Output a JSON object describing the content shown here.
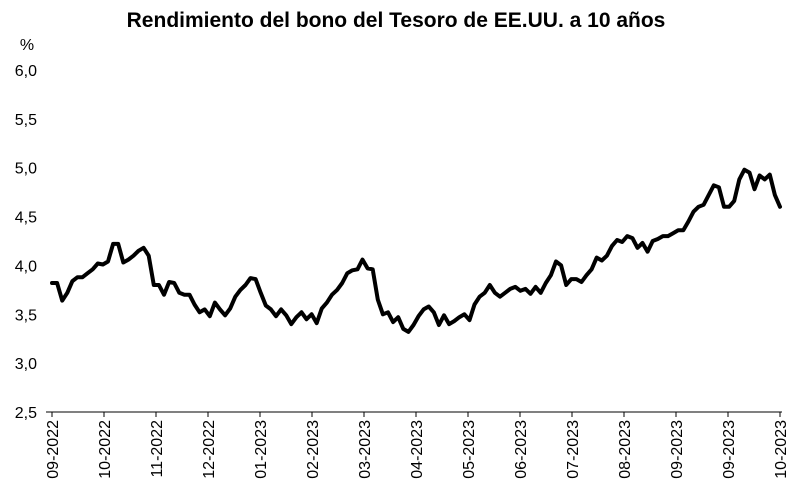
{
  "chart_data": {
    "type": "line",
    "title": "Rendimiento del bono del Tesoro de EE.UU. a 10 años",
    "ylabel": "%",
    "xlabel": "",
    "ylim": [
      2.5,
      6.0
    ],
    "yticks": [
      "6,0",
      "5,5",
      "5,0",
      "4,5",
      "4,0",
      "3,5",
      "3,0",
      "2,5"
    ],
    "xticks": [
      "09-2022",
      "10-2022",
      "11-2022",
      "12-2022",
      "01-2023",
      "02-2023",
      "03-2023",
      "04-2023",
      "05-2023",
      "06-2023",
      "07-2023",
      "08-2023",
      "09-2023",
      "09-2023",
      "10-2023"
    ],
    "grid": false,
    "legend": "none",
    "line_color": "#000000",
    "series": [
      {
        "values": [
          3.82,
          3.82,
          3.64,
          3.72,
          3.84,
          3.88,
          3.88,
          3.92,
          3.96,
          4.02,
          4.01,
          4.04,
          4.22,
          4.22,
          4.03,
          4.06,
          4.1,
          4.15,
          4.18,
          4.1,
          3.8,
          3.8,
          3.7,
          3.83,
          3.82,
          3.72,
          3.7,
          3.7,
          3.6,
          3.52,
          3.55,
          3.48,
          3.62,
          3.55,
          3.49,
          3.56,
          3.68,
          3.75,
          3.8,
          3.87,
          3.86,
          3.72,
          3.59,
          3.55,
          3.48,
          3.55,
          3.49,
          3.4,
          3.47,
          3.52,
          3.45,
          3.5,
          3.41,
          3.56,
          3.62,
          3.7,
          3.75,
          3.82,
          3.92,
          3.95,
          3.96,
          4.06,
          3.97,
          3.96,
          3.65,
          3.5,
          3.52,
          3.42,
          3.47,
          3.35,
          3.32,
          3.39,
          3.48,
          3.55,
          3.58,
          3.52,
          3.39,
          3.49,
          3.4,
          3.43,
          3.47,
          3.5,
          3.44,
          3.6,
          3.68,
          3.72,
          3.8,
          3.72,
          3.68,
          3.72,
          3.76,
          3.78,
          3.74,
          3.76,
          3.71,
          3.78,
          3.72,
          3.82,
          3.9,
          4.04,
          4.0,
          3.8,
          3.86,
          3.86,
          3.83,
          3.9,
          3.96,
          4.08,
          4.05,
          4.1,
          4.2,
          4.26,
          4.24,
          4.3,
          4.28,
          4.18,
          4.23,
          4.14,
          4.25,
          4.27,
          4.3,
          4.3,
          4.33,
          4.36,
          4.36,
          4.45,
          4.55,
          4.6,
          4.62,
          4.72,
          4.82,
          4.8,
          4.6,
          4.6,
          4.66,
          4.88,
          4.98,
          4.95,
          4.78,
          4.92,
          4.88,
          4.93,
          4.72,
          4.6
        ]
      }
    ]
  }
}
